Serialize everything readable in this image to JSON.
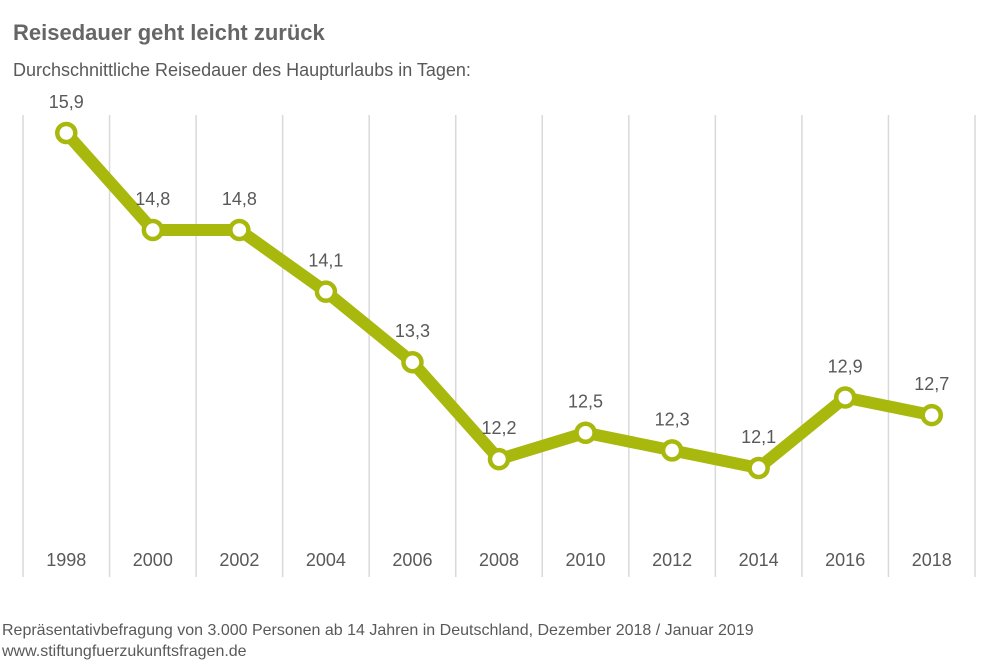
{
  "chart_data": {
    "type": "line",
    "title": "Reisedauer geht leicht zurück",
    "subtitle": "Durchschnittliche Reisedauer des Haupturlaubs in Tagen:",
    "x": [
      "1998",
      "2000",
      "2002",
      "2004",
      "2006",
      "2008",
      "2010",
      "2012",
      "2014",
      "2016",
      "2018"
    ],
    "series": [
      {
        "values": [
          15.9,
          14.8,
          14.8,
          14.1,
          13.3,
          12.2,
          12.5,
          12.3,
          12.1,
          12.9,
          12.7
        ],
        "labels": [
          "15,9",
          "14,8",
          "14,8",
          "14,1",
          "13,3",
          "12,2",
          "12,5",
          "12,3",
          "12,1",
          "12,9",
          "12,7"
        ],
        "color": "#a8b80c"
      }
    ],
    "xlabel": "",
    "ylabel": "",
    "grid": "vertical",
    "legend": "none"
  },
  "footer": {
    "note": "Repräsentativbefragung von 3.000 Personen ab 14 Jahren in Deutschland, Dezember 2018 / Januar 2019",
    "source": "www.stiftungfuerzukunftsfragen.de"
  }
}
